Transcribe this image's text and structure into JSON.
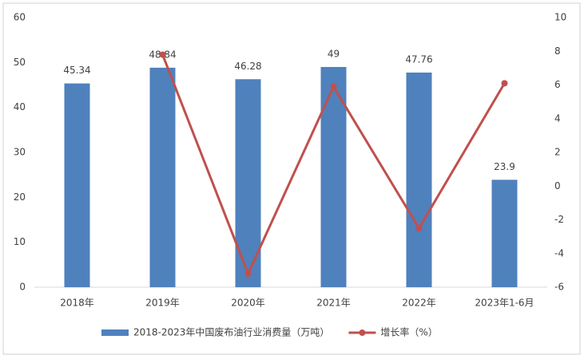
{
  "chart_data": {
    "type": "bar_line",
    "categories": [
      "2018年",
      "2019年",
      "2020年",
      "2021年",
      "2022年",
      "2023年1-6月"
    ],
    "series": [
      {
        "name": "2018-2023年中国废布油行业消费量（万吨）",
        "color": "#4f81bd",
        "type": "bar",
        "values": [
          45.34,
          48.84,
          46.28,
          49,
          47.76,
          23.9
        ]
      },
      {
        "name": "增长率（%）",
        "color": "#c0504d",
        "type": "line",
        "axis": "y2",
        "values": [
          null,
          7.8,
          -5.2,
          5.9,
          -2.5,
          6.1
        ]
      }
    ],
    "ylim": [
      0,
      60
    ],
    "yticks": [
      0,
      10,
      20,
      30,
      40,
      50,
      60
    ],
    "y2lim": [
      -6,
      10
    ],
    "y2ticks": [
      -6,
      -4,
      -2,
      0,
      2,
      4,
      6,
      8,
      10
    ],
    "grid": false
  }
}
